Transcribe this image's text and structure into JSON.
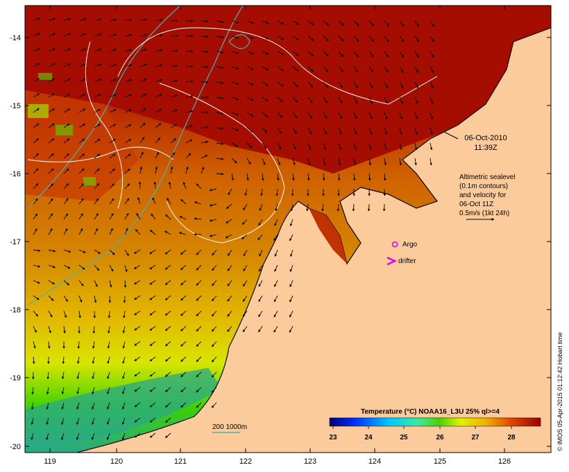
{
  "map": {
    "lon_ticks": [
      "119",
      "120",
      "121",
      "122",
      "123",
      "124",
      "125",
      "126"
    ],
    "lat_ticks": [
      "-14",
      "-15",
      "-16",
      "-17",
      "-18",
      "-19",
      "-20"
    ],
    "lon_range": [
      118.6,
      126.7
    ],
    "lat_range": [
      -20.1,
      -13.6
    ],
    "date_line1": "06-Oct-2010",
    "date_line2": "11:39Z",
    "altimetry_lines": [
      "Altimetric sealevel",
      "(0.1m contours)",
      "and velocity for",
      "06-Oct 11Z",
      "0.5m/s (1kt 24h)"
    ],
    "legend_argo": "Argo",
    "legend_drifter": "drifter",
    "bathymetry_label": "200  1000m",
    "colorbar_title": "Temperature (°C) NOAA16_L3U 25% ql>=4",
    "colorbar_ticks": [
      "23",
      "24",
      "25",
      "26",
      "27",
      "28"
    ],
    "colorbar_range": [
      22.8,
      28.8
    ],
    "credit": "© IMOS 05-Apr-2015 01:12:42 Hobart time",
    "colors": {
      "land": "#fbcb9c",
      "sea_hot": "#a40d00",
      "argo": "#e800e8",
      "bathymetry": "#46b4b4"
    }
  }
}
